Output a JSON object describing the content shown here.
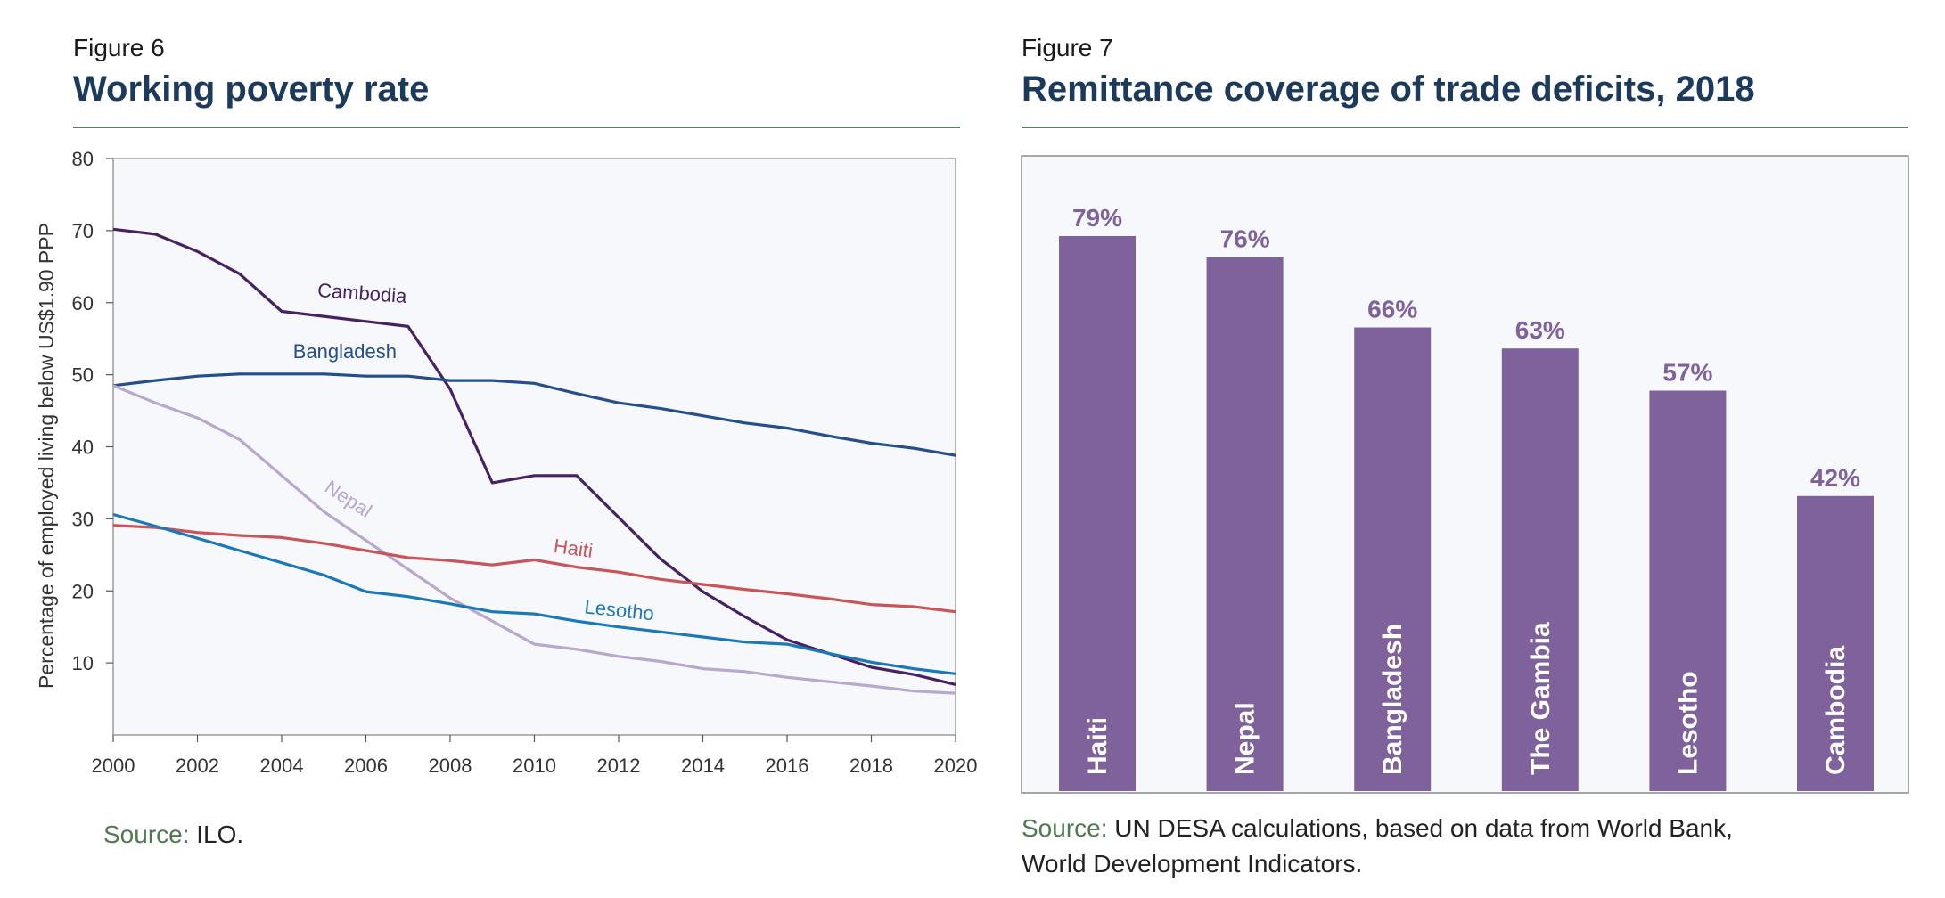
{
  "figure6": {
    "label": "Figure 6",
    "title": "Working poverty rate",
    "source_label": "Source:",
    "source_text": " ILO."
  },
  "figure7": {
    "label": "Figure 7",
    "title": "Remittance coverage of trade deficits, 2018",
    "source_label": "Source:",
    "source_line1": " UN DESA calculations, based on data from World Bank,",
    "source_line2": "World Development Indicators."
  },
  "colors": {
    "Cambodia": "#472263",
    "Bangladesh": "#244e8c",
    "Nepal": "#b8a7cf",
    "Haiti": "#c85558",
    "Lesotho": "#1a79b6",
    "bars": "#7f629c",
    "plot_bg": "#f7f8fb",
    "axis": "#555555"
  },
  "chart_data": [
    {
      "type": "line",
      "ylabel": "Percentage of employed living below US$1.90 PPP",
      "xlabel": "",
      "xlim": [
        2000,
        2020
      ],
      "ylim": [
        0,
        80
      ],
      "xticks": [
        2000,
        2002,
        2004,
        2006,
        2008,
        2010,
        2012,
        2014,
        2016,
        2018,
        2020
      ],
      "yticks": [
        10,
        20,
        30,
        40,
        50,
        60,
        70,
        80
      ],
      "grid": false,
      "legend": "inline labels",
      "x": [
        2000,
        2001,
        2002,
        2003,
        2004,
        2005,
        2006,
        2007,
        2008,
        2009,
        2010,
        2011,
        2012,
        2013,
        2014,
        2015,
        2016,
        2017,
        2018,
        2019,
        2020
      ],
      "series": [
        {
          "name": "Cambodia",
          "values": [
            70.2,
            69.5,
            67.1,
            64.0,
            58.8,
            58.1,
            57.4,
            56.7,
            48.0,
            35.0,
            36.0,
            36.0,
            30.2,
            24.4,
            19.9,
            16.4,
            13.2,
            11.3,
            9.4,
            8.4,
            7.0
          ]
        },
        {
          "name": "Bangladesh",
          "values": [
            48.5,
            49.2,
            49.8,
            50.1,
            50.1,
            50.1,
            49.8,
            49.8,
            49.2,
            49.2,
            48.8,
            47.4,
            46.1,
            45.3,
            44.3,
            43.3,
            42.6,
            41.5,
            40.5,
            39.8,
            38.8
          ]
        },
        {
          "name": "Nepal",
          "values": [
            48.5,
            46.1,
            44.0,
            41.0,
            36.0,
            31.0,
            27.0,
            23.0,
            19.0,
            15.8,
            12.6,
            11.9,
            10.9,
            10.2,
            9.2,
            8.8,
            8.0,
            7.4,
            6.8,
            6.1,
            5.8
          ]
        },
        {
          "name": "Haiti",
          "values": [
            29.1,
            28.8,
            28.1,
            27.7,
            27.4,
            26.6,
            25.6,
            24.6,
            24.2,
            23.6,
            24.3,
            23.3,
            22.6,
            21.6,
            20.9,
            20.2,
            19.6,
            18.9,
            18.1,
            17.8,
            17.1
          ]
        },
        {
          "name": "Lesotho",
          "values": [
            30.6,
            29.0,
            27.3,
            25.6,
            23.9,
            22.2,
            19.9,
            19.2,
            18.2,
            17.1,
            16.8,
            15.8,
            15.0,
            14.3,
            13.6,
            12.9,
            12.6,
            11.3,
            10.1,
            9.2,
            8.5
          ]
        }
      ]
    },
    {
      "type": "bar",
      "title": "",
      "categories": [
        "Haiti",
        "Nepal",
        "Bangladesh",
        "The Gambia",
        "Lesotho",
        "Cambodia"
      ],
      "values": [
        79,
        76,
        66,
        63,
        57,
        42
      ],
      "labels": [
        "79%",
        "76%",
        "66%",
        "63%",
        "57%",
        "42%"
      ],
      "unit": "%"
    }
  ]
}
